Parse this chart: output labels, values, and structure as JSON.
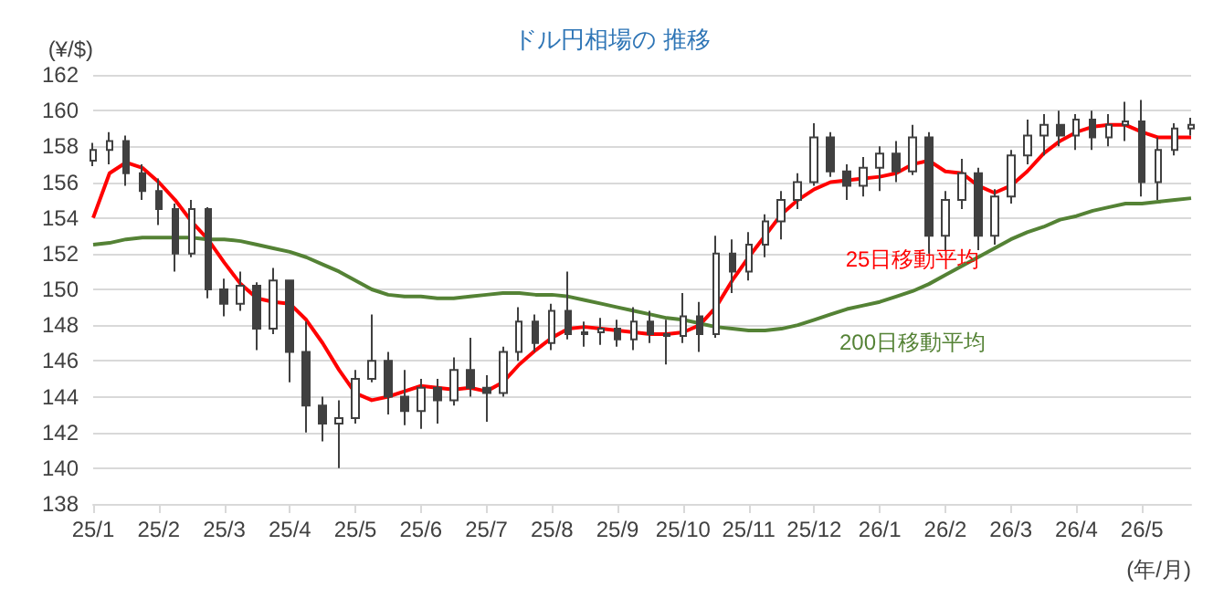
{
  "chart_data": {
    "type": "candlestick",
    "title": "ドル円相場の 推移",
    "ylabel": "(¥/$)",
    "xlabel": "(年/月)",
    "categories": [
      "25/1",
      null,
      null,
      null,
      "25/2",
      null,
      null,
      null,
      "25/3",
      null,
      null,
      null,
      "25/4",
      null,
      null,
      null,
      "25/5",
      null,
      null,
      null,
      "25/6",
      null,
      null,
      null,
      "25/7",
      null,
      null,
      null,
      "25/8",
      null,
      null,
      null,
      "25/9",
      null,
      null,
      null,
      "25/10",
      null,
      null,
      null,
      "25/11",
      null,
      null,
      null,
      "25/12",
      null,
      null,
      null,
      "26/1",
      null,
      null,
      null,
      "26/2",
      null,
      null,
      null,
      "26/3",
      null,
      null,
      null,
      "26/4",
      null,
      null,
      null,
      "26/5",
      null,
      null,
      null
    ],
    "ylim": [
      138,
      162
    ],
    "yticks": [
      138,
      140,
      142,
      144,
      146,
      148,
      150,
      152,
      154,
      156,
      158,
      160,
      162
    ],
    "grid": "y",
    "legend": false,
    "series": [
      {
        "color": "#404040",
        "ohlc": [
          [
            157.2,
            158.2,
            156.9,
            157.8
          ],
          [
            157.8,
            158.8,
            157.0,
            158.3
          ],
          [
            158.3,
            158.6,
            155.8,
            156.5
          ],
          [
            156.5,
            157.0,
            155.0,
            155.5
          ],
          [
            155.5,
            156.2,
            153.6,
            154.5
          ],
          [
            154.5,
            154.8,
            151.0,
            152.0
          ],
          [
            152.0,
            155.0,
            151.8,
            154.5
          ],
          [
            154.5,
            154.6,
            149.5,
            150.0
          ],
          [
            150.0,
            150.6,
            148.5,
            149.2
          ],
          [
            149.2,
            151.0,
            148.8,
            150.2
          ],
          [
            150.2,
            150.4,
            146.6,
            147.8
          ],
          [
            147.8,
            151.2,
            147.5,
            150.5
          ],
          [
            150.5,
            150.5,
            144.8,
            146.5
          ],
          [
            146.5,
            148.2,
            142.0,
            143.5
          ],
          [
            143.5,
            144.0,
            141.5,
            142.5
          ],
          [
            142.5,
            143.8,
            140.0,
            142.8
          ],
          [
            142.8,
            145.5,
            142.5,
            145.0
          ],
          [
            145.0,
            148.6,
            144.8,
            146.0
          ],
          [
            146.0,
            146.5,
            143.0,
            144.0
          ],
          [
            144.0,
            145.5,
            142.4,
            143.2
          ],
          [
            143.2,
            145.0,
            142.2,
            144.5
          ],
          [
            144.5,
            145.0,
            142.5,
            143.8
          ],
          [
            143.8,
            146.2,
            143.5,
            145.5
          ],
          [
            145.5,
            147.3,
            144.0,
            144.5
          ],
          [
            144.5,
            145.2,
            142.6,
            144.2
          ],
          [
            144.2,
            146.8,
            144.0,
            146.5
          ],
          [
            146.5,
            149.0,
            146.0,
            148.2
          ],
          [
            148.2,
            148.6,
            146.5,
            147.0
          ],
          [
            147.0,
            149.2,
            146.6,
            148.8
          ],
          [
            148.8,
            151.0,
            147.2,
            147.5
          ],
          [
            147.5,
            148.2,
            146.8,
            147.6
          ],
          [
            147.6,
            148.4,
            146.9,
            147.8
          ],
          [
            147.8,
            148.3,
            146.8,
            147.2
          ],
          [
            147.2,
            149.0,
            146.6,
            148.2
          ],
          [
            148.2,
            148.8,
            147.0,
            147.5
          ],
          [
            147.5,
            148.3,
            145.8,
            147.4
          ],
          [
            147.4,
            149.8,
            147.0,
            148.5
          ],
          [
            148.5,
            149.3,
            146.5,
            147.5
          ],
          [
            147.5,
            153.0,
            147.3,
            152.0
          ],
          [
            152.0,
            152.8,
            149.8,
            151.0
          ],
          [
            151.0,
            153.2,
            150.5,
            152.5
          ],
          [
            152.5,
            154.2,
            151.8,
            153.8
          ],
          [
            153.8,
            155.5,
            152.8,
            155.0
          ],
          [
            155.0,
            156.5,
            154.5,
            156.0
          ],
          [
            156.0,
            159.3,
            155.8,
            158.5
          ],
          [
            158.5,
            158.8,
            156.3,
            156.6
          ],
          [
            156.6,
            157.0,
            155.0,
            155.8
          ],
          [
            155.8,
            157.4,
            155.2,
            156.8
          ],
          [
            156.8,
            158.0,
            155.5,
            157.6
          ],
          [
            157.6,
            158.3,
            156.0,
            156.6
          ],
          [
            156.6,
            159.2,
            156.4,
            158.5
          ],
          [
            158.5,
            158.8,
            152.0,
            153.0
          ],
          [
            153.0,
            155.5,
            152.2,
            155.0
          ],
          [
            155.0,
            157.3,
            154.5,
            156.5
          ],
          [
            156.5,
            156.8,
            152.2,
            153.0
          ],
          [
            153.0,
            155.6,
            152.5,
            155.2
          ],
          [
            155.2,
            157.8,
            154.8,
            157.5
          ],
          [
            157.5,
            159.5,
            157.0,
            158.6
          ],
          [
            158.6,
            159.8,
            157.5,
            159.2
          ],
          [
            159.2,
            160.0,
            158.0,
            158.6
          ],
          [
            158.6,
            159.8,
            157.8,
            159.5
          ],
          [
            159.5,
            160.0,
            157.8,
            158.5
          ],
          [
            158.5,
            159.8,
            158.0,
            159.2
          ],
          [
            159.2,
            160.5,
            158.3,
            159.4
          ],
          [
            159.4,
            160.6,
            155.2,
            156.0
          ],
          [
            156.0,
            158.5,
            155.0,
            157.8
          ],
          [
            157.8,
            159.3,
            157.5,
            159.0
          ],
          [
            159.0,
            159.6,
            158.6,
            159.2
          ]
        ]
      },
      {
        "type": "line",
        "name": "25日移動平均",
        "color": "#ff0000",
        "values": [
          154,
          156.5,
          157.1,
          156.8,
          156,
          155,
          153.8,
          152.8,
          151.5,
          150.3,
          149.5,
          149.3,
          149.2,
          148.3,
          147,
          145.5,
          144.2,
          143.8,
          144,
          144.3,
          144.6,
          144.5,
          144.4,
          144.5,
          144.3,
          144.8,
          145.8,
          146.6,
          147.3,
          147.8,
          147.9,
          147.8,
          147.7,
          147.6,
          147.5,
          147.5,
          147.6,
          148,
          149,
          150.5,
          151.8,
          153,
          154.2,
          155,
          155.6,
          156,
          156.1,
          156.2,
          156.3,
          156.5,
          157,
          157.2,
          156.6,
          156.5,
          155.8,
          155.4,
          155.8,
          156.6,
          157.6,
          158.3,
          158.8,
          159.1,
          159.2,
          159.2,
          158.8,
          158.5,
          158.5,
          158.5
        ]
      },
      {
        "type": "line",
        "name": "200日移動平均",
        "color": "#548235",
        "values": [
          152.5,
          152.6,
          152.8,
          152.9,
          152.9,
          152.9,
          152.9,
          152.8,
          152.8,
          152.7,
          152.5,
          152.3,
          152.1,
          151.8,
          151.4,
          151,
          150.5,
          150,
          149.7,
          149.6,
          149.6,
          149.5,
          149.5,
          149.6,
          149.7,
          149.8,
          149.8,
          149.7,
          149.7,
          149.6,
          149.4,
          149.2,
          149,
          148.8,
          148.6,
          148.4,
          148.3,
          148.1,
          147.9,
          147.8,
          147.7,
          147.7,
          147.8,
          148,
          148.3,
          148.6,
          148.9,
          149.1,
          149.3,
          149.6,
          149.9,
          150.3,
          150.8,
          151.3,
          151.8,
          152.3,
          152.8,
          153.2,
          153.5,
          153.9,
          154.1,
          154.4,
          154.6,
          154.8,
          154.8,
          154.9,
          155,
          155.1
        ]
      }
    ]
  }
}
